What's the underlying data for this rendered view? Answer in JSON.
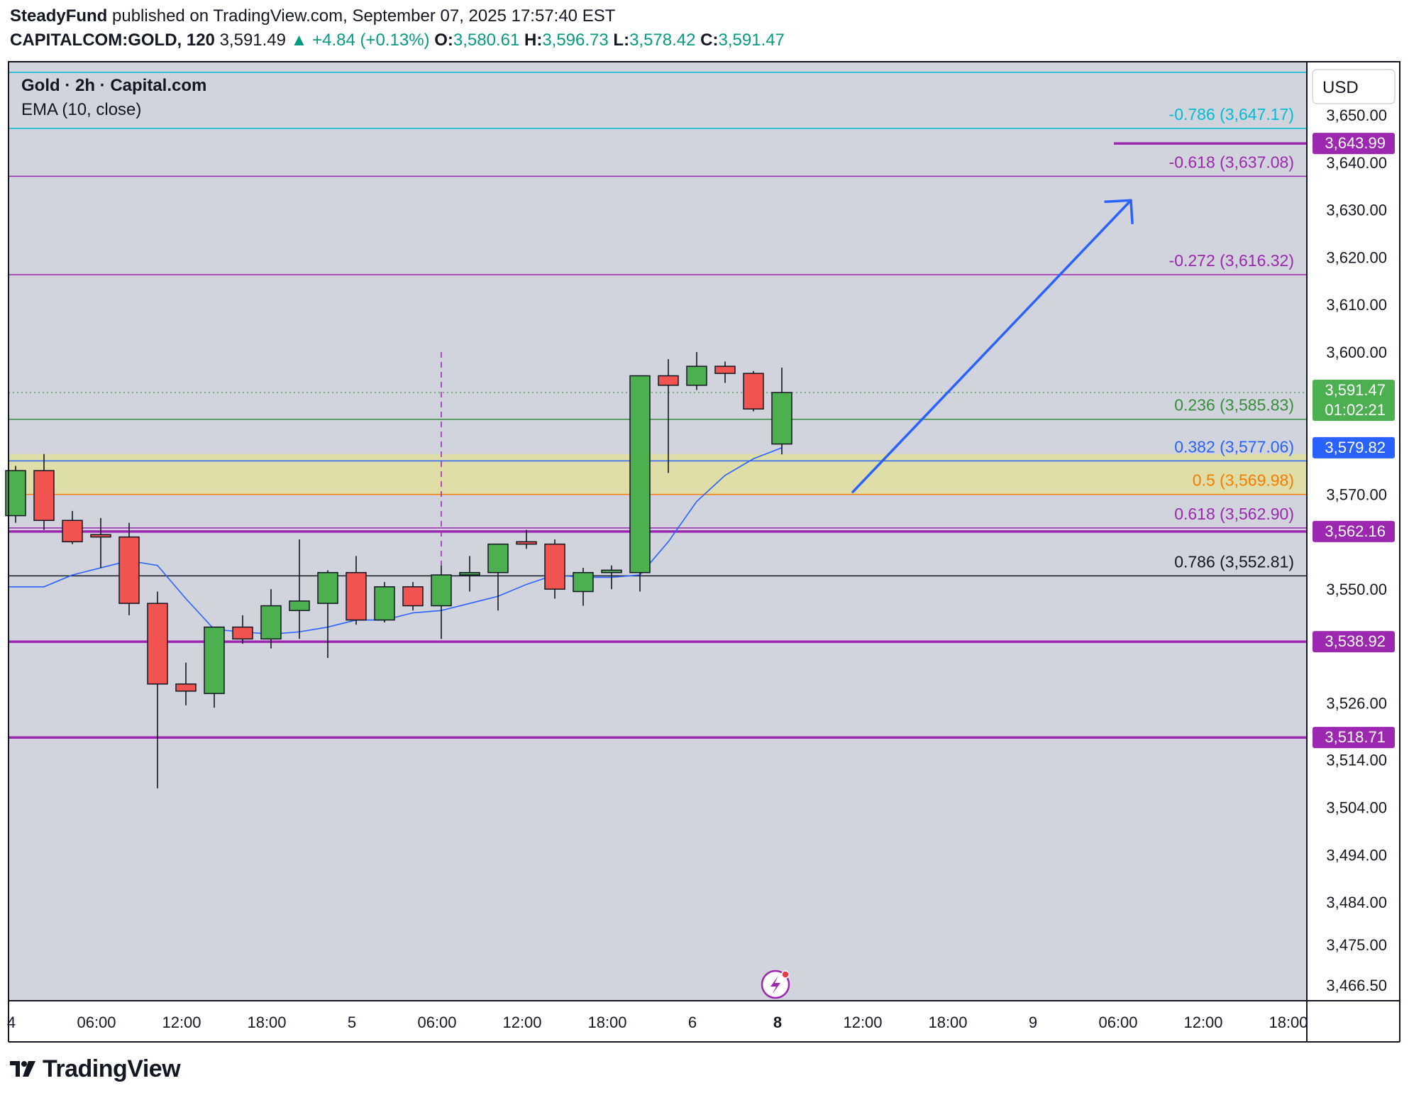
{
  "header": {
    "author": "SteadyFund",
    "published_text": "published on TradingView.com, September 07, 2025 17:57:40 EST",
    "symbol": "CAPITALCOM:GOLD, 120",
    "last_price": "3,591.49",
    "change": "▲ +4.84 (+0.13%)",
    "open_label": "O:",
    "open": "3,580.61",
    "high_label": "H:",
    "high": "3,596.73",
    "low_label": "L:",
    "low": "3,578.42",
    "close_label": "C:",
    "close": "3,591.47"
  },
  "legend": {
    "title": "Gold · 2h · Capital.com",
    "indicator": "EMA (10, close)"
  },
  "currency_button": "USD",
  "footer": {
    "brand": "TradingView"
  },
  "colors": {
    "background": "#d1d4dc",
    "bull": "#4caf50",
    "bear": "#f05350",
    "ema": "#2962ff",
    "arrow": "#2962ff",
    "level": "#9c27b0",
    "zone": "#e0dea4"
  },
  "chart_data": {
    "type": "candlestick",
    "title": "Gold · 2h · Capital.com",
    "y_axis": {
      "label_ticks": [
        3650,
        3640,
        3630,
        3620,
        3610,
        3600,
        3570,
        3550,
        3526,
        3514,
        3504,
        3494,
        3484,
        3475,
        3466.5
      ],
      "tick_labels": [
        "3,650.00",
        "3,640.00",
        "3,630.00",
        "3,620.00",
        "3,610.00",
        "3,600.00",
        "3,570.00",
        "3,550.00",
        "3,526.00",
        "3,514.00",
        "3,504.00",
        "3,494.00",
        "3,484.00",
        "3,475.00",
        "3,466.50"
      ]
    },
    "x_axis": {
      "tick_labels": [
        "4",
        "06:00",
        "12:00",
        "18:00",
        "5",
        "06:00",
        "12:00",
        "18:00",
        "6",
        "8",
        "12:00",
        "18:00",
        "9",
        "06:00",
        "12:00",
        "18:00"
      ],
      "bold": [
        false,
        false,
        false,
        false,
        false,
        false,
        false,
        false,
        false,
        true,
        false,
        false,
        false,
        false,
        false,
        false
      ]
    },
    "candles": [
      {
        "o": 3565.5,
        "h": 3576.0,
        "l": 3564.0,
        "c": 3575.0
      },
      {
        "o": 3575.0,
        "h": 3578.5,
        "l": 3562.5,
        "c": 3564.5
      },
      {
        "o": 3564.5,
        "h": 3566.5,
        "l": 3559.5,
        "c": 3560.0
      },
      {
        "o": 3561.5,
        "h": 3565.0,
        "l": 3554.5,
        "c": 3561.0
      },
      {
        "o": 3561.0,
        "h": 3564.0,
        "l": 3544.5,
        "c": 3547.0
      },
      {
        "o": 3547.0,
        "h": 3549.5,
        "l": 3508.0,
        "c": 3530.0
      },
      {
        "o": 3530.0,
        "h": 3534.5,
        "l": 3525.5,
        "c": 3528.5
      },
      {
        "o": 3528.0,
        "h": 3542.0,
        "l": 3525.0,
        "c": 3542.0
      },
      {
        "o": 3542.0,
        "h": 3544.5,
        "l": 3538.5,
        "c": 3539.5
      },
      {
        "o": 3539.5,
        "h": 3550.0,
        "l": 3537.5,
        "c": 3546.5
      },
      {
        "o": 3545.5,
        "h": 3560.5,
        "l": 3539.5,
        "c": 3547.5
      },
      {
        "o": 3547.0,
        "h": 3554.0,
        "l": 3535.5,
        "c": 3553.5
      },
      {
        "o": 3553.5,
        "h": 3557.0,
        "l": 3542.5,
        "c": 3543.5
      },
      {
        "o": 3543.5,
        "h": 3551.5,
        "l": 3543.0,
        "c": 3550.5
      },
      {
        "o": 3550.5,
        "h": 3551.5,
        "l": 3545.5,
        "c": 3546.5
      },
      {
        "o": 3546.5,
        "h": 3555.0,
        "l": 3539.5,
        "c": 3553.0
      },
      {
        "o": 3553.0,
        "h": 3557.0,
        "l": 3549.5,
        "c": 3553.5
      },
      {
        "o": 3553.5,
        "h": 3559.5,
        "l": 3545.5,
        "c": 3559.5
      },
      {
        "o": 3560.0,
        "h": 3562.5,
        "l": 3558.5,
        "c": 3559.5
      },
      {
        "o": 3559.5,
        "h": 3560.5,
        "l": 3548.0,
        "c": 3550.0
      },
      {
        "o": 3549.5,
        "h": 3554.5,
        "l": 3546.5,
        "c": 3553.5
      },
      {
        "o": 3553.5,
        "h": 3555.0,
        "l": 3550.0,
        "c": 3554.0
      },
      {
        "o": 3553.5,
        "h": 3595.0,
        "l": 3549.5,
        "c": 3595.0
      },
      {
        "o": 3595.0,
        "h": 3598.5,
        "l": 3574.5,
        "c": 3593.0
      },
      {
        "o": 3593.0,
        "h": 3600.0,
        "l": 3592.0,
        "c": 3597.0
      },
      {
        "o": 3597.0,
        "h": 3598.0,
        "l": 3593.5,
        "c": 3595.5
      },
      {
        "o": 3595.5,
        "h": 3596.0,
        "l": 3587.5,
        "c": 3588.0
      },
      {
        "o": 3580.61,
        "h": 3596.73,
        "l": 3578.42,
        "c": 3591.47
      }
    ],
    "ema": [
      3550.5,
      3553.0,
      3554.5,
      3556.0,
      3555.0,
      3548.0,
      3541.5,
      3541.0,
      3540.5,
      3541.0,
      3542.0,
      3543.5,
      3543.5,
      3545.0,
      3545.5,
      3547.0,
      3548.5,
      3551.0,
      3553.0,
      3552.5,
      3552.5,
      3553.0,
      3560.0,
      3568.5,
      3574.0,
      3577.5,
      3579.82
    ],
    "fib_levels": [
      {
        "label": "-0.786 (3,647.17)",
        "price": 3647.17,
        "color": "#00bcd4"
      },
      {
        "label": "-0.618 (3,637.08)",
        "price": 3637.08,
        "color": "#9c27b0"
      },
      {
        "label": "-0.272 (3,616.32)",
        "price": 3616.32,
        "color": "#9c27b0"
      },
      {
        "label": "0.236 (3,585.83)",
        "price": 3585.83,
        "color": "#388e3c"
      },
      {
        "label": "0.382 (3,577.06)",
        "price": 3577.06,
        "color": "#2962ff"
      },
      {
        "label": "0.5 (3,569.98)",
        "price": 3569.98,
        "color": "#f57c00"
      },
      {
        "label": "0.618 (3,562.90)",
        "price": 3562.9,
        "color": "#9c27b0"
      },
      {
        "label": "0.786 (3,552.81)",
        "price": 3552.81,
        "color": "#131722"
      }
    ],
    "top_level": 3659.0,
    "zone": {
      "from": 3569.98,
      "to": 3578.5
    },
    "horizontal_levels": [
      {
        "price": 3643.99,
        "label": "3,643.99",
        "color": "#9c27b0",
        "segment": true
      },
      {
        "price": 3562.16,
        "label": "3,562.16",
        "color": "#9c27b0",
        "segment": false
      },
      {
        "price": 3538.92,
        "label": "3,538.92",
        "color": "#9c27b0",
        "segment": false
      },
      {
        "price": 3518.71,
        "label": "3,518.71",
        "color": "#9c27b0",
        "segment": false
      }
    ],
    "price_tags": [
      {
        "label": "3,591.47",
        "sub": "01:02:21",
        "price": 3591.47,
        "color": "#4caf50"
      },
      {
        "label": "3,579.82",
        "price": 3579.82,
        "color": "#2962ff"
      }
    ],
    "current_price_line": 3591.47,
    "arrow": {
      "from": {
        "bar": 29.5,
        "price": 3570.5
      },
      "to": {
        "bar": 39.3,
        "price": 3632.0
      }
    },
    "vertical_marker_bar": 15
  }
}
